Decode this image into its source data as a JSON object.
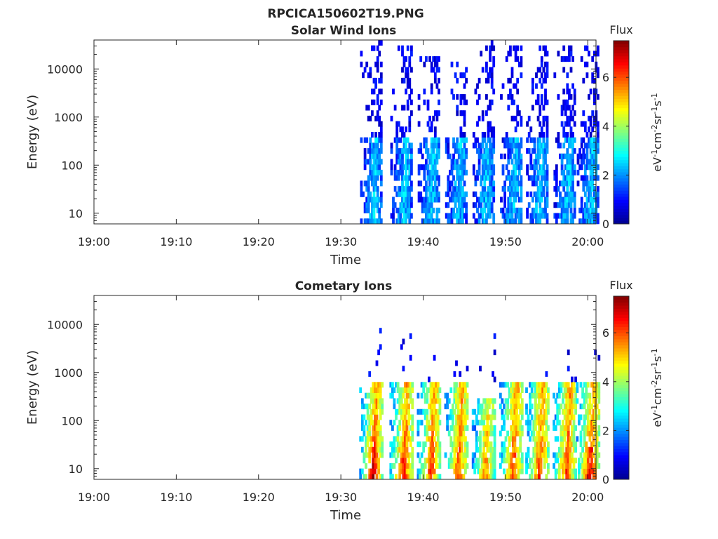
{
  "figure_title": "RPCICA150602T19.PNG",
  "colormap": [
    "#00008f",
    "#0000ff",
    "#0080ff",
    "#00ffff",
    "#80ff80",
    "#ffff00",
    "#ff8000",
    "#ff0000",
    "#800000"
  ],
  "chart_data": [
    {
      "type": "heatmap",
      "title": "Solar Wind Ions",
      "xlabel": "Time",
      "ylabel": "Energy (eV)",
      "xlim": [
        "19:00",
        "20:01"
      ],
      "x_ticks": [
        "19:00",
        "19:10",
        "19:20",
        "19:30",
        "19:40",
        "19:50",
        "20:00"
      ],
      "y_scale": "log",
      "ylim": [
        6,
        40000
      ],
      "y_ticks": [
        "10",
        "100",
        "1000",
        "10000"
      ],
      "colorbar": {
        "title": "Flux",
        "label": "eV-1cm-2sr-1s-1",
        "clim": [
          0,
          7.5
        ],
        "ticks": [
          "0",
          "2",
          "4",
          "6"
        ]
      },
      "bursts": [
        {
          "time": "19:33:50",
          "flux_peak": 3.3,
          "flux_core": 2.0,
          "core_energy_max_eV": 400,
          "tail_energy_max_eV": 40000
        },
        {
          "time": "19:37:30",
          "flux_peak": 3.3,
          "flux_core": 2.0,
          "core_energy_max_eV": 400,
          "tail_energy_max_eV": 30000
        },
        {
          "time": "19:40:50",
          "flux_peak": 3.2,
          "flux_core": 2.0,
          "core_energy_max_eV": 400,
          "tail_energy_max_eV": 20000
        },
        {
          "time": "19:44:10",
          "flux_peak": 3.0,
          "flux_core": 2.0,
          "core_energy_max_eV": 400,
          "tail_energy_max_eV": 15000
        },
        {
          "time": "19:47:30",
          "flux_peak": 3.0,
          "flux_core": 2.0,
          "core_energy_max_eV": 400,
          "tail_energy_max_eV": 40000
        },
        {
          "time": "19:50:50",
          "flux_peak": 3.0,
          "flux_core": 2.0,
          "core_energy_max_eV": 400,
          "tail_energy_max_eV": 30000
        },
        {
          "time": "19:54:00",
          "flux_peak": 3.0,
          "flux_core": 2.0,
          "core_energy_max_eV": 400,
          "tail_energy_max_eV": 30000
        },
        {
          "time": "19:57:20",
          "flux_peak": 3.0,
          "flux_core": 2.0,
          "core_energy_max_eV": 400,
          "tail_energy_max_eV": 30000
        },
        {
          "time": "20:00:10",
          "flux_peak": 3.0,
          "flux_core": 2.0,
          "core_energy_max_eV": 400,
          "tail_energy_max_eV": 30000
        }
      ]
    },
    {
      "type": "heatmap",
      "title": "Cometary Ions",
      "xlabel": "Time",
      "ylabel": "Energy (eV)",
      "xlim": [
        "19:00",
        "20:01"
      ],
      "x_ticks": [
        "19:00",
        "19:10",
        "19:20",
        "19:30",
        "19:40",
        "19:50",
        "20:00"
      ],
      "y_scale": "log",
      "ylim": [
        6,
        40000
      ],
      "y_ticks": [
        "10",
        "100",
        "1000",
        "10000"
      ],
      "colorbar": {
        "title": "Flux",
        "label": "eV-1cm-2sr-1s-1",
        "clim": [
          0,
          7.5
        ],
        "ticks": [
          "0",
          "2",
          "4",
          "6"
        ]
      },
      "bursts": [
        {
          "time": "19:33:50",
          "flux_peak": 6.5,
          "flux_core": 4.5,
          "core_energy_max_eV": 600,
          "tail_energy_max_eV": 10000
        },
        {
          "time": "19:37:30",
          "flux_peak": 6.0,
          "flux_core": 4.5,
          "core_energy_max_eV": 600,
          "tail_energy_max_eV": 10000
        },
        {
          "time": "19:40:50",
          "flux_peak": 5.5,
          "flux_core": 4.5,
          "core_energy_max_eV": 600,
          "tail_energy_max_eV": 8000
        },
        {
          "time": "19:44:10",
          "flux_peak": 5.5,
          "flux_core": 4.5,
          "core_energy_max_eV": 600,
          "tail_energy_max_eV": 6000
        },
        {
          "time": "19:47:30",
          "flux_peak": 5.0,
          "flux_core": 4.0,
          "core_energy_max_eV": 300,
          "tail_energy_max_eV": 9000
        },
        {
          "time": "19:50:50",
          "flux_peak": 5.5,
          "flux_core": 4.5,
          "core_energy_max_eV": 600,
          "tail_energy_max_eV": 1500
        },
        {
          "time": "19:54:00",
          "flux_peak": 5.5,
          "flux_core": 4.5,
          "core_energy_max_eV": 600,
          "tail_energy_max_eV": 5000
        },
        {
          "time": "19:57:20",
          "flux_peak": 5.5,
          "flux_core": 4.5,
          "core_energy_max_eV": 600,
          "tail_energy_max_eV": 3000
        },
        {
          "time": "20:00:10",
          "flux_peak": 6.5,
          "flux_core": 4.5,
          "core_energy_max_eV": 600,
          "tail_energy_max_eV": 3000
        }
      ]
    }
  ]
}
